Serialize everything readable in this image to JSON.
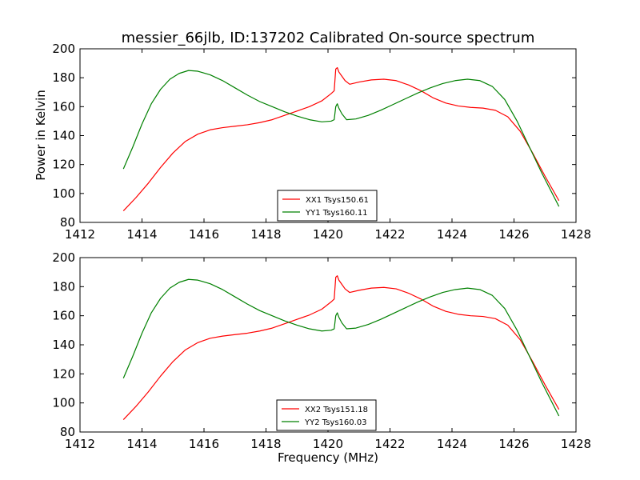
{
  "figure": {
    "title": "messier_66jlb, ID:137202 Calibrated On-source spectrum",
    "xlabel": "Frequency (MHz)",
    "ylabel": "Power in Kelvin"
  },
  "chart_data": [
    {
      "type": "line",
      "xlim": [
        1412,
        1428
      ],
      "ylim": [
        80,
        200
      ],
      "xticks": [
        1412,
        1414,
        1416,
        1418,
        1420,
        1422,
        1424,
        1426,
        1428
      ],
      "yticks": [
        80,
        100,
        120,
        140,
        160,
        180,
        200
      ],
      "grid": false,
      "legend_position": "bottom-center",
      "series": [
        {
          "name": "XX1 Tsys150.61",
          "color": "#ff0000",
          "points": [
            [
              1413.4,
              88
            ],
            [
              1413.8,
              97
            ],
            [
              1414.2,
              107
            ],
            [
              1414.6,
              118
            ],
            [
              1415.0,
              128
            ],
            [
              1415.4,
              136
            ],
            [
              1415.8,
              141
            ],
            [
              1416.2,
              144
            ],
            [
              1416.6,
              145.5
            ],
            [
              1417.0,
              146.5
            ],
            [
              1417.4,
              147.5
            ],
            [
              1417.8,
              149
            ],
            [
              1418.2,
              151
            ],
            [
              1418.6,
              154
            ],
            [
              1419.0,
              157
            ],
            [
              1419.4,
              160
            ],
            [
              1419.8,
              164
            ],
            [
              1420.1,
              169
            ],
            [
              1420.2,
              171
            ],
            [
              1420.25,
              186
            ],
            [
              1420.3,
              187
            ],
            [
              1420.35,
              184
            ],
            [
              1420.45,
              181
            ],
            [
              1420.55,
              178
            ],
            [
              1420.7,
              175.5
            ],
            [
              1421.0,
              177
            ],
            [
              1421.4,
              178.5
            ],
            [
              1421.8,
              179
            ],
            [
              1422.2,
              178
            ],
            [
              1422.6,
              175
            ],
            [
              1423.0,
              171
            ],
            [
              1423.4,
              166
            ],
            [
              1423.8,
              162.5
            ],
            [
              1424.2,
              160.5
            ],
            [
              1424.6,
              159.5
            ],
            [
              1425.0,
              159
            ],
            [
              1425.4,
              157.5
            ],
            [
              1425.8,
              153
            ],
            [
              1426.2,
              143
            ],
            [
              1426.6,
              128
            ],
            [
              1427.0,
              112
            ],
            [
              1427.45,
              95
            ]
          ]
        },
        {
          "name": "YY1 Tsys160.11",
          "color": "#008000",
          "points": [
            [
              1413.4,
              117
            ],
            [
              1413.7,
              132
            ],
            [
              1414.0,
              148
            ],
            [
              1414.3,
              162
            ],
            [
              1414.6,
              172
            ],
            [
              1414.9,
              179
            ],
            [
              1415.2,
              183
            ],
            [
              1415.5,
              185
            ],
            [
              1415.8,
              184.5
            ],
            [
              1416.2,
              182
            ],
            [
              1416.6,
              178
            ],
            [
              1417.0,
              173
            ],
            [
              1417.4,
              168
            ],
            [
              1417.8,
              163.5
            ],
            [
              1418.2,
              160
            ],
            [
              1418.6,
              156.5
            ],
            [
              1419.0,
              153.5
            ],
            [
              1419.4,
              151
            ],
            [
              1419.8,
              149.5
            ],
            [
              1420.1,
              150
            ],
            [
              1420.2,
              151
            ],
            [
              1420.25,
              160
            ],
            [
              1420.3,
              162
            ],
            [
              1420.35,
              159
            ],
            [
              1420.45,
              155
            ],
            [
              1420.6,
              151
            ],
            [
              1420.9,
              151.5
            ],
            [
              1421.3,
              154
            ],
            [
              1421.7,
              157.5
            ],
            [
              1422.1,
              161.5
            ],
            [
              1422.5,
              165.5
            ],
            [
              1422.9,
              169.5
            ],
            [
              1423.3,
              173
            ],
            [
              1423.7,
              176
            ],
            [
              1424.1,
              178
            ],
            [
              1424.5,
              179
            ],
            [
              1424.9,
              178
            ],
            [
              1425.3,
              174
            ],
            [
              1425.7,
              165
            ],
            [
              1426.1,
              150
            ],
            [
              1426.5,
              132
            ],
            [
              1426.9,
              114
            ],
            [
              1427.45,
              91
            ]
          ]
        }
      ]
    },
    {
      "type": "line",
      "xlim": [
        1412,
        1428
      ],
      "ylim": [
        80,
        200
      ],
      "xticks": [
        1412,
        1414,
        1416,
        1418,
        1420,
        1422,
        1424,
        1426,
        1428
      ],
      "yticks": [
        80,
        100,
        120,
        140,
        160,
        180,
        200
      ],
      "grid": false,
      "legend_position": "bottom-center",
      "series": [
        {
          "name": "XX2 Tsys151.18",
          "color": "#ff0000",
          "points": [
            [
              1413.4,
              88.5
            ],
            [
              1413.8,
              97.5
            ],
            [
              1414.2,
              107.5
            ],
            [
              1414.6,
              118.5
            ],
            [
              1415.0,
              128.5
            ],
            [
              1415.4,
              136.5
            ],
            [
              1415.8,
              141.5
            ],
            [
              1416.2,
              144.5
            ],
            [
              1416.6,
              146
            ],
            [
              1417.0,
              147
            ],
            [
              1417.4,
              148
            ],
            [
              1417.8,
              149.5
            ],
            [
              1418.2,
              151.5
            ],
            [
              1418.6,
              154.5
            ],
            [
              1419.0,
              157.5
            ],
            [
              1419.4,
              160.5
            ],
            [
              1419.8,
              164.5
            ],
            [
              1420.1,
              169.5
            ],
            [
              1420.2,
              171.5
            ],
            [
              1420.25,
              186.5
            ],
            [
              1420.3,
              187.5
            ],
            [
              1420.35,
              184.5
            ],
            [
              1420.45,
              181.5
            ],
            [
              1420.55,
              178.5
            ],
            [
              1420.7,
              176
            ],
            [
              1421.0,
              177.5
            ],
            [
              1421.4,
              179
            ],
            [
              1421.8,
              179.5
            ],
            [
              1422.2,
              178.5
            ],
            [
              1422.6,
              175.5
            ],
            [
              1423.0,
              171.5
            ],
            [
              1423.4,
              166.5
            ],
            [
              1423.8,
              163
            ],
            [
              1424.2,
              161
            ],
            [
              1424.6,
              160
            ],
            [
              1425.0,
              159.5
            ],
            [
              1425.4,
              158
            ],
            [
              1425.8,
              153.5
            ],
            [
              1426.2,
              143.5
            ],
            [
              1426.6,
              128.5
            ],
            [
              1427.0,
              112.5
            ],
            [
              1427.45,
              95.5
            ]
          ]
        },
        {
          "name": "YY2 Tsys160.03",
          "color": "#008000",
          "points": [
            [
              1413.4,
              117
            ],
            [
              1413.7,
              132
            ],
            [
              1414.0,
              148
            ],
            [
              1414.3,
              162
            ],
            [
              1414.6,
              172
            ],
            [
              1414.9,
              179
            ],
            [
              1415.2,
              183
            ],
            [
              1415.5,
              185
            ],
            [
              1415.8,
              184.5
            ],
            [
              1416.2,
              182
            ],
            [
              1416.6,
              178
            ],
            [
              1417.0,
              173
            ],
            [
              1417.4,
              168
            ],
            [
              1417.8,
              163.5
            ],
            [
              1418.2,
              160
            ],
            [
              1418.6,
              156.5
            ],
            [
              1419.0,
              153.5
            ],
            [
              1419.4,
              151
            ],
            [
              1419.8,
              149.5
            ],
            [
              1420.1,
              150
            ],
            [
              1420.2,
              151
            ],
            [
              1420.25,
              160
            ],
            [
              1420.3,
              162
            ],
            [
              1420.35,
              159
            ],
            [
              1420.45,
              155
            ],
            [
              1420.6,
              151
            ],
            [
              1420.9,
              151.5
            ],
            [
              1421.3,
              154
            ],
            [
              1421.7,
              157.5
            ],
            [
              1422.1,
              161.5
            ],
            [
              1422.5,
              165.5
            ],
            [
              1422.9,
              169.5
            ],
            [
              1423.3,
              173
            ],
            [
              1423.7,
              176
            ],
            [
              1424.1,
              178
            ],
            [
              1424.5,
              179
            ],
            [
              1424.9,
              178
            ],
            [
              1425.3,
              174
            ],
            [
              1425.7,
              165
            ],
            [
              1426.1,
              150
            ],
            [
              1426.5,
              132
            ],
            [
              1426.9,
              114
            ],
            [
              1427.45,
              91
            ]
          ]
        }
      ]
    }
  ]
}
